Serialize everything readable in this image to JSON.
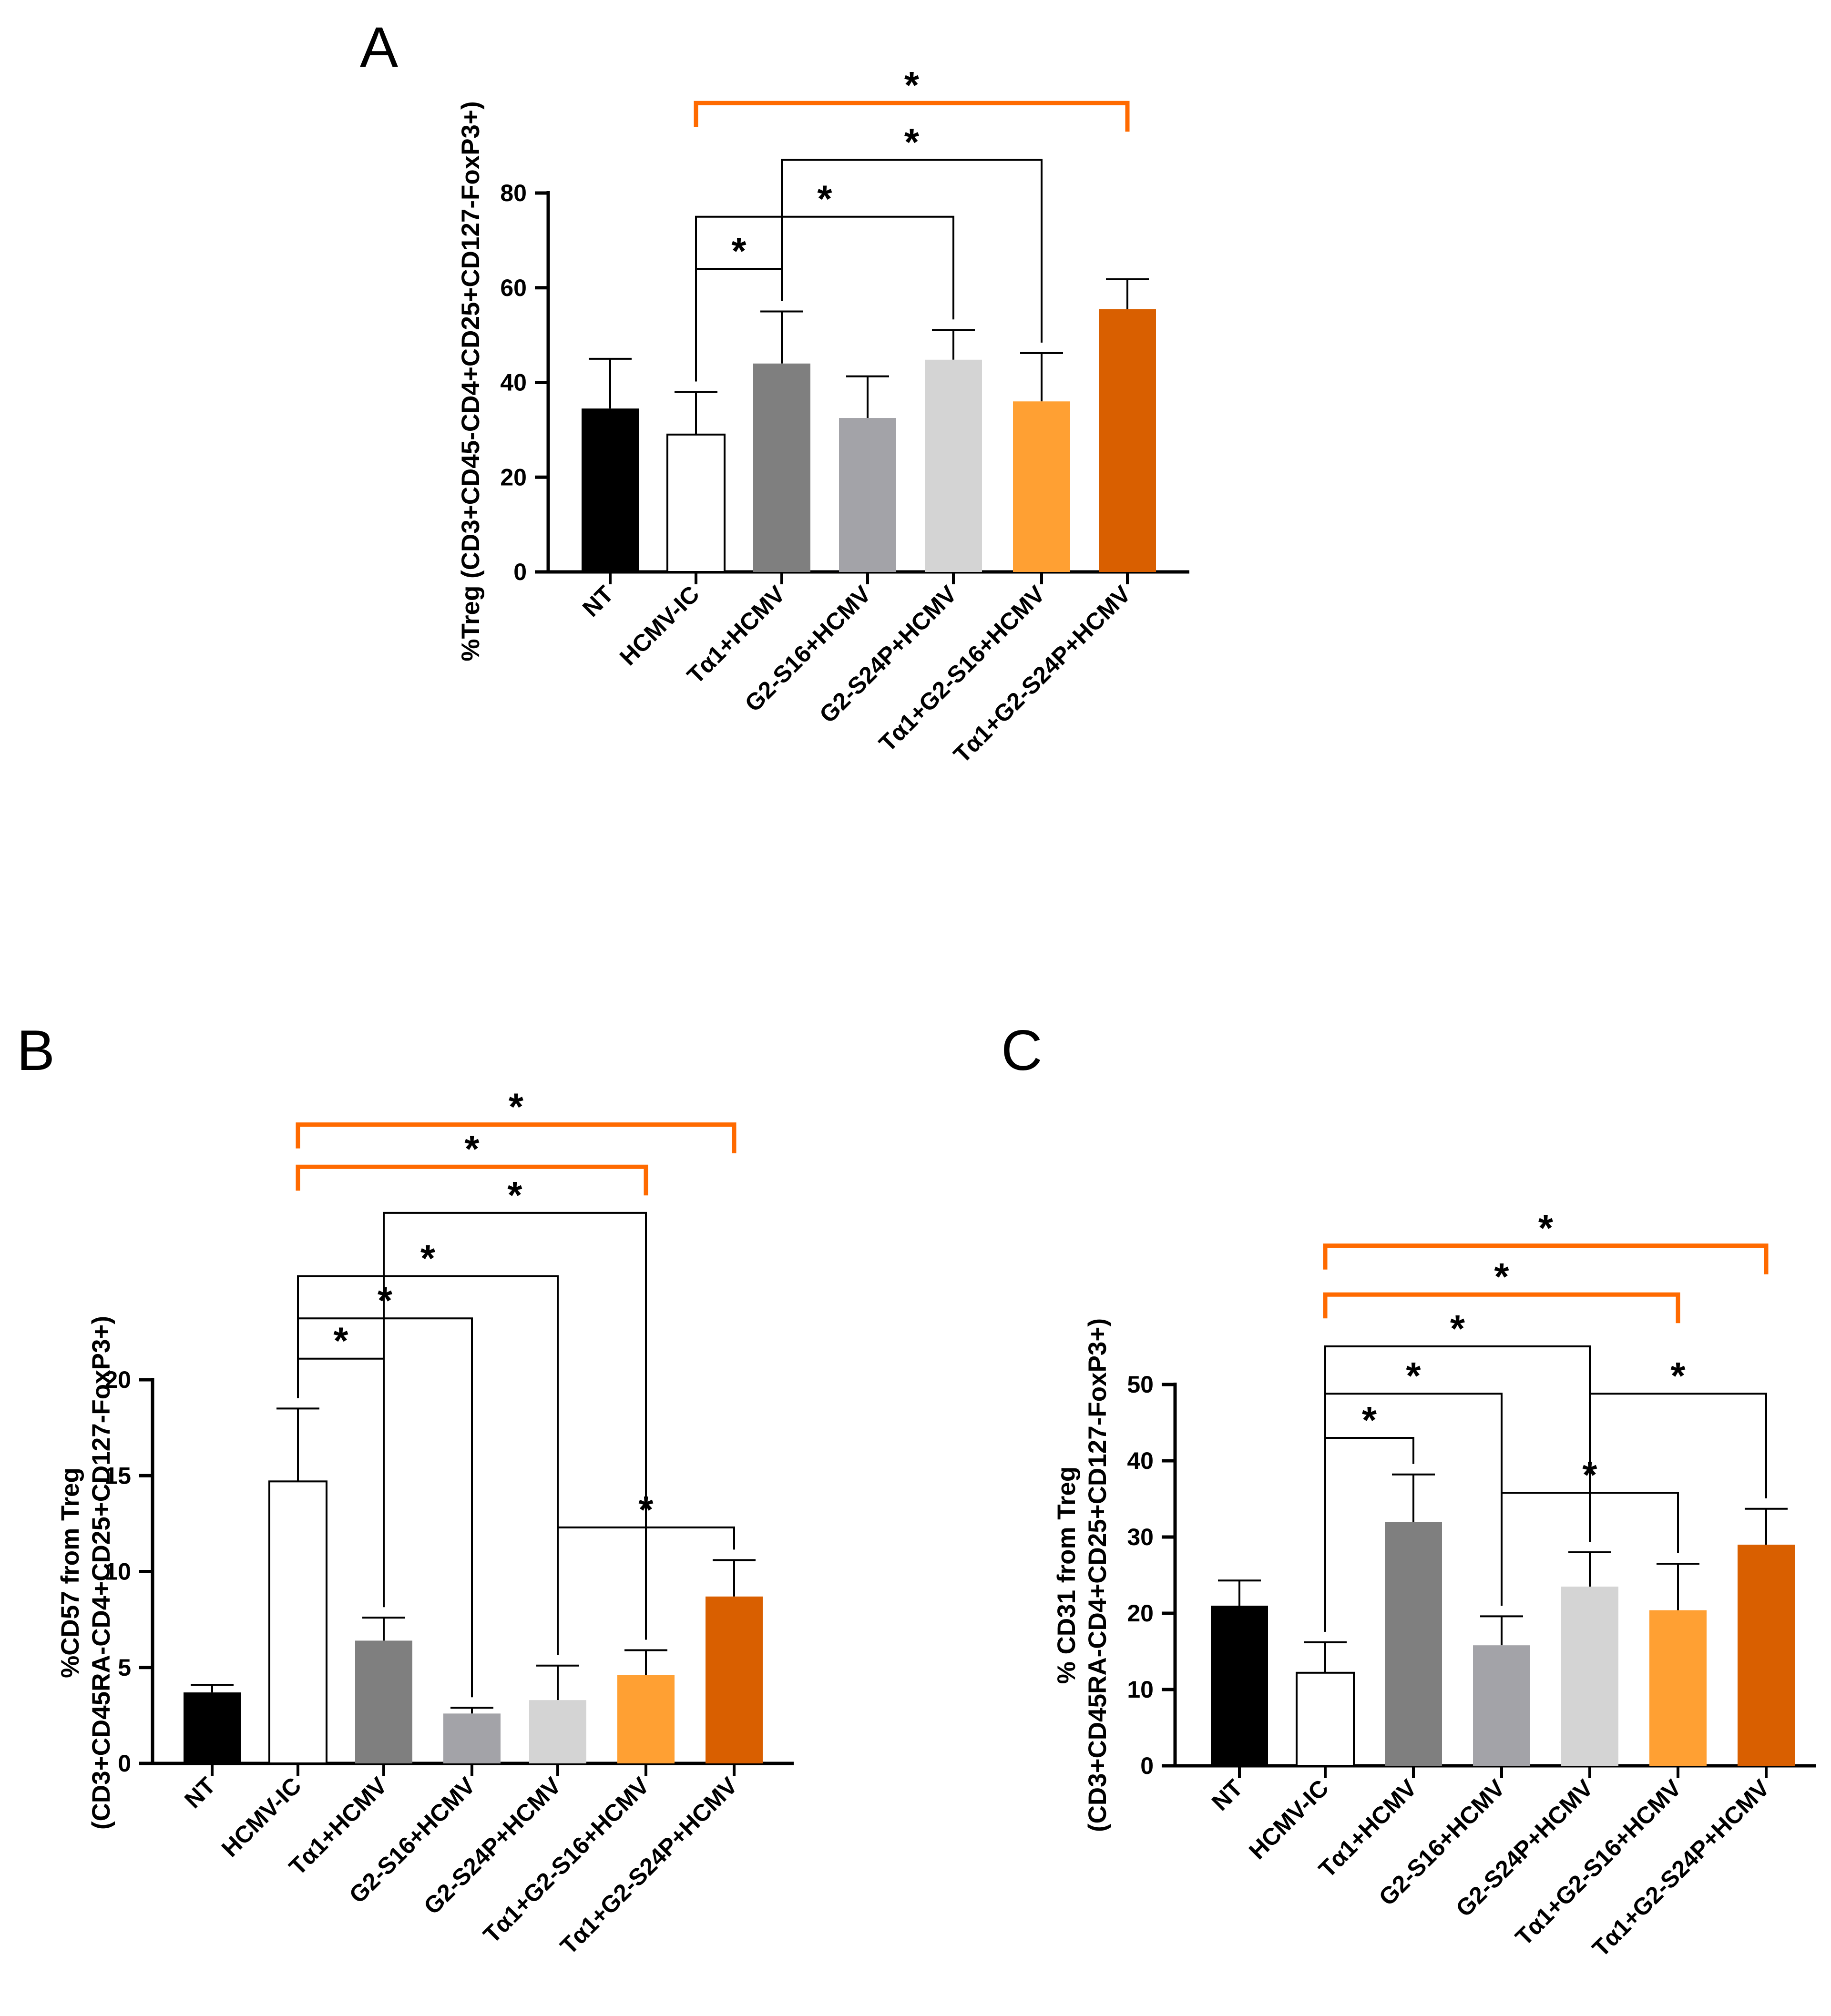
{
  "chart_data": [
    {
      "panel": "A",
      "type": "bar",
      "ylabel_lines": [
        "%Treg (CD3+CD45-CD4+CD25+CD127-FoxP3+)"
      ],
      "categories": [
        "NT",
        "HCMV-IC",
        "Tα1+HCMV",
        "G2-S16+HCMV",
        "G2-S24P+HCMV",
        "Tα1+G2-S16+HCMV",
        "Tα1+G2-S24P+HCMV"
      ],
      "values": [
        34.5,
        29,
        44,
        32.5,
        44.8,
        36,
        55.5
      ],
      "errors": [
        10.5,
        9,
        11,
        8.8,
        6.3,
        10.2,
        6.3
      ],
      "colors": [
        "#000000",
        "#ffffff",
        "#7f7f7f",
        "#a3a3a8",
        "#d4d4d4",
        "#ffa033",
        "#d95f00"
      ],
      "ylim": [
        0,
        80
      ],
      "yticks": [
        0,
        20,
        40,
        60,
        80
      ],
      "significance": [
        {
          "from": 1,
          "to": 2,
          "label": "*",
          "y": 64,
          "color": "#000000"
        },
        {
          "from": 1,
          "to": 4,
          "label": "*",
          "y": 75,
          "color": "#000000"
        },
        {
          "from": 2,
          "to": 5,
          "label": "*",
          "y": 87,
          "color": "#000000"
        },
        {
          "from": 1,
          "to": 6,
          "label": "*",
          "y": 99,
          "color": "#ff6a00"
        }
      ]
    },
    {
      "panel": "B",
      "type": "bar",
      "ylabel_lines": [
        "%CD57 from Treg",
        "(CD3+CD45RA-CD4+CD25+CD127-FoxP3+)"
      ],
      "categories": [
        "NT",
        "HCMV-IC",
        "Tα1+HCMV",
        "G2-S16+HCMV",
        "G2-S24P+HCMV",
        "Tα1+G2-S16+HCMV",
        "Tα1+G2-S24P+HCMV"
      ],
      "values": [
        3.7,
        14.7,
        6.4,
        2.6,
        3.3,
        4.6,
        8.7
      ],
      "errors": [
        0.4,
        3.8,
        1.2,
        0.3,
        1.8,
        1.3,
        1.9
      ],
      "colors": [
        "#000000",
        "#ffffff",
        "#7f7f7f",
        "#a3a3a8",
        "#d4d4d4",
        "#ffa033",
        "#d95f00"
      ],
      "ylim": [
        0,
        20
      ],
      "yticks": [
        0,
        5,
        10,
        15,
        20
      ],
      "significance": [
        {
          "from": 4,
          "to": 6,
          "label": "*",
          "y": 12.3,
          "color": "#000000"
        },
        {
          "from": 1,
          "to": 2,
          "label": "*",
          "y": 21.1,
          "color": "#000000"
        },
        {
          "from": 1,
          "to": 3,
          "label": "*",
          "y": 23.2,
          "color": "#000000"
        },
        {
          "from": 1,
          "to": 4,
          "label": "*",
          "y": 25.4,
          "color": "#000000"
        },
        {
          "from": 2,
          "to": 5,
          "label": "*",
          "y": 28.7,
          "color": "#000000"
        },
        {
          "from": 1,
          "to": 5,
          "label": "*",
          "y": 31.1,
          "color": "#ff6a00"
        },
        {
          "from": 1,
          "to": 6,
          "label": "*",
          "y": 33.3,
          "color": "#ff6a00"
        }
      ]
    },
    {
      "panel": "C",
      "type": "bar",
      "ylabel_lines": [
        "% CD31 from Treg",
        "(CD3+CD45RA-CD4+CD25+CD127-FoxP3+)"
      ],
      "categories": [
        "NT",
        "HCMV-IC",
        "Tα1+HCMV",
        "G2-S16+HCMV",
        "G2-S24P+HCMV",
        "Tα1+G2-S16+HCMV",
        "Tα1+G2-S24P+HCMV"
      ],
      "values": [
        21,
        12.2,
        32,
        15.8,
        23.5,
        20.4,
        29
      ],
      "errors": [
        3.3,
        4,
        6.2,
        3.8,
        4.5,
        6.1,
        4.7
      ],
      "colors": [
        "#000000",
        "#ffffff",
        "#7f7f7f",
        "#a3a3a8",
        "#d4d4d4",
        "#ffa033",
        "#d95f00"
      ],
      "ylim": [
        0,
        50
      ],
      "yticks": [
        0,
        10,
        20,
        30,
        40,
        50
      ],
      "significance": [
        {
          "from": 3,
          "to": 5,
          "label": "*",
          "y": 35.8,
          "color": "#000000"
        },
        {
          "from": 1,
          "to": 2,
          "label": "*",
          "y": 43,
          "color": "#000000"
        },
        {
          "from": 1,
          "to": 3,
          "label": "*",
          "y": 48.8,
          "color": "#000000"
        },
        {
          "from": 4,
          "to": 6,
          "label": "*",
          "y": 48.8,
          "color": "#000000"
        },
        {
          "from": 1,
          "to": 4,
          "label": "*",
          "y": 55,
          "color": "#000000"
        },
        {
          "from": 1,
          "to": 5,
          "label": "*",
          "y": 61.8,
          "color": "#ff6a00"
        },
        {
          "from": 1,
          "to": 6,
          "label": "*",
          "y": 68.2,
          "color": "#ff6a00"
        }
      ]
    }
  ]
}
